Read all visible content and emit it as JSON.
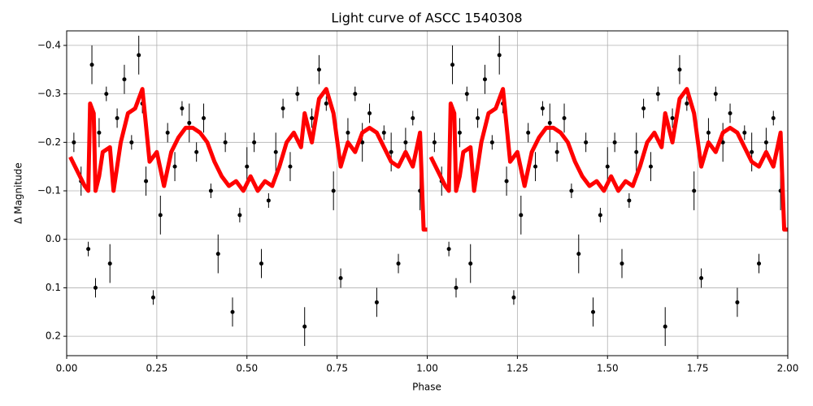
{
  "chart_data": {
    "type": "errorbar-line",
    "title": "Light curve of ASCC 1540308",
    "x_label": "Phase",
    "y_label": "Δ Magnitude",
    "xlim": [
      0,
      2
    ],
    "ylim": [
      0.24,
      -0.43
    ],
    "grid": true,
    "xticks": [
      {
        "value": 0,
        "label": "0.00"
      },
      {
        "value": 0.25,
        "label": "0.25"
      },
      {
        "value": 0.5,
        "label": "0.50"
      },
      {
        "value": 0.75,
        "label": "0.75"
      },
      {
        "value": 1,
        "label": "1.00"
      },
      {
        "value": 1.25,
        "label": "1.25"
      },
      {
        "value": 1.5,
        "label": "1.50"
      },
      {
        "value": 1.75,
        "label": "1.75"
      },
      {
        "value": 2,
        "label": "2.00"
      }
    ],
    "yticks": [
      {
        "value": -0.4,
        "label": "−0.4"
      },
      {
        "value": -0.3,
        "label": "−0.3"
      },
      {
        "value": -0.2,
        "label": "−0.2"
      },
      {
        "value": -0.1,
        "label": "−0.1"
      },
      {
        "value": 0,
        "label": "0.0"
      },
      0.1,
      0.2
    ],
    "points": {
      "color": "#000000",
      "x": [
        0.02,
        0.04,
        0.06,
        0.07,
        0.08,
        0.09,
        0.11,
        0.12,
        0.14,
        0.16,
        0.18,
        0.2,
        0.21,
        0.22,
        0.24,
        0.26,
        0.28,
        0.3,
        0.32,
        0.34,
        0.36,
        0.38,
        0.4,
        0.42,
        0.44,
        0.46,
        0.48,
        0.5,
        0.52,
        0.54,
        0.56,
        0.58,
        0.6,
        0.62,
        0.64,
        0.66,
        0.68,
        0.7,
        0.72,
        0.74,
        0.76,
        0.78,
        0.8,
        0.82,
        0.84,
        0.86,
        0.88,
        0.9,
        0.92,
        0.94,
        0.96,
        0.98,
        1.02,
        1.04,
        1.06,
        1.07,
        1.08,
        1.09,
        1.11,
        1.12,
        1.14,
        1.16,
        1.18,
        1.2,
        1.21,
        1.22,
        1.24,
        1.26,
        1.28,
        1.3,
        1.32,
        1.34,
        1.36,
        1.38,
        1.4,
        1.42,
        1.44,
        1.46,
        1.48,
        1.5,
        1.52,
        1.54,
        1.56,
        1.58,
        1.6,
        1.62,
        1.64,
        1.66,
        1.68,
        1.7,
        1.72,
        1.74,
        1.76,
        1.78,
        1.8,
        1.82,
        1.84,
        1.86,
        1.88,
        1.9,
        1.92,
        1.94,
        1.96,
        1.98
      ],
      "values": [
        -0.2,
        -0.12,
        0.02,
        -0.36,
        0.1,
        -0.22,
        -0.3,
        0.05,
        -0.25,
        -0.33,
        -0.2,
        -0.38,
        -0.28,
        -0.12,
        0.12,
        -0.05,
        -0.22,
        -0.15,
        -0.27,
        -0.24,
        -0.18,
        -0.25,
        -0.1,
        0.03,
        -0.2,
        0.15,
        -0.05,
        -0.15,
        -0.2,
        0.05,
        -0.08,
        -0.18,
        -0.27,
        -0.15,
        -0.3,
        0.18,
        -0.25,
        -0.35,
        -0.28,
        -0.1,
        0.08,
        -0.22,
        -0.3,
        -0.2,
        -0.26,
        0.13,
        -0.22,
        -0.18,
        0.05,
        -0.2,
        -0.25,
        -0.1,
        -0.2,
        -0.12,
        0.02,
        -0.36,
        0.1,
        -0.22,
        -0.3,
        0.05,
        -0.25,
        -0.33,
        -0.2,
        -0.38,
        -0.28,
        -0.12,
        0.12,
        -0.05,
        -0.22,
        -0.15,
        -0.27,
        -0.24,
        -0.18,
        -0.25,
        -0.1,
        0.03,
        -0.2,
        0.15,
        -0.05,
        -0.15,
        -0.2,
        0.05,
        -0.08,
        -0.18,
        -0.27,
        -0.15,
        -0.3,
        0.18,
        -0.25,
        -0.35,
        -0.28,
        -0.1,
        0.08,
        -0.22,
        -0.3,
        -0.2,
        -0.26,
        0.13,
        -0.22,
        -0.18,
        0.05,
        -0.2,
        -0.25,
        -0.1
      ],
      "errors": [
        0.02,
        0.03,
        0.015,
        0.04,
        0.02,
        0.03,
        0.015,
        0.04,
        0.02,
        0.03,
        0.015,
        0.04,
        0.02,
        0.03,
        0.015,
        0.04,
        0.02,
        0.03,
        0.015,
        0.04,
        0.02,
        0.03,
        0.015,
        0.04,
        0.02,
        0.03,
        0.015,
        0.04,
        0.02,
        0.03,
        0.015,
        0.04,
        0.02,
        0.03,
        0.015,
        0.04,
        0.02,
        0.03,
        0.015,
        0.04,
        0.02,
        0.03,
        0.015,
        0.04,
        0.02,
        0.03,
        0.015,
        0.04,
        0.02,
        0.03,
        0.015,
        0.04,
        0.02,
        0.03,
        0.015,
        0.04,
        0.02,
        0.03,
        0.015,
        0.04,
        0.02,
        0.03,
        0.015,
        0.04,
        0.02,
        0.03,
        0.015,
        0.04,
        0.02,
        0.03,
        0.015,
        0.04,
        0.02,
        0.03,
        0.015,
        0.04,
        0.02,
        0.03,
        0.015,
        0.04,
        0.02,
        0.03,
        0.015,
        0.04,
        0.02,
        0.03,
        0.015,
        0.04,
        0.02,
        0.03,
        0.015,
        0.04,
        0.02,
        0.03,
        0.015,
        0.04,
        0.02,
        0.03,
        0.015,
        0.04,
        0.02,
        0.03,
        0.015,
        0.04
      ]
    },
    "curve": {
      "color": "#ff0000",
      "x": [
        0.01,
        0.03,
        0.05,
        0.06,
        0.065,
        0.075,
        0.08,
        0.09,
        0.1,
        0.12,
        0.13,
        0.15,
        0.17,
        0.19,
        0.21,
        0.23,
        0.25,
        0.27,
        0.29,
        0.31,
        0.33,
        0.35,
        0.37,
        0.39,
        0.41,
        0.43,
        0.45,
        0.47,
        0.49,
        0.51,
        0.53,
        0.55,
        0.57,
        0.59,
        0.61,
        0.63,
        0.65,
        0.66,
        0.68,
        0.7,
        0.72,
        0.74,
        0.76,
        0.78,
        0.8,
        0.82,
        0.84,
        0.86,
        0.88,
        0.9,
        0.92,
        0.94,
        0.96,
        0.98,
        0.99,
        1.0,
        null,
        1.01,
        1.03,
        1.05,
        1.06,
        1.065,
        1.075,
        1.08,
        1.09,
        1.1,
        1.12,
        1.13,
        1.15,
        1.17,
        1.19,
        1.21,
        1.23,
        1.25,
        1.27,
        1.29,
        1.31,
        1.33,
        1.35,
        1.37,
        1.39,
        1.41,
        1.43,
        1.45,
        1.47,
        1.49,
        1.51,
        1.53,
        1.55,
        1.57,
        1.59,
        1.61,
        1.63,
        1.65,
        1.66,
        1.68,
        1.7,
        1.72,
        1.74,
        1.76,
        1.78,
        1.8,
        1.82,
        1.84,
        1.86,
        1.88,
        1.9,
        1.92,
        1.94,
        1.96,
        1.98,
        1.99,
        2.0
      ],
      "values": [
        -0.17,
        -0.14,
        -0.11,
        -0.1,
        -0.28,
        -0.26,
        -0.1,
        -0.13,
        -0.18,
        -0.19,
        -0.1,
        -0.2,
        -0.26,
        -0.27,
        -0.31,
        -0.16,
        -0.18,
        -0.11,
        -0.18,
        -0.21,
        -0.23,
        -0.23,
        -0.22,
        -0.2,
        -0.16,
        -0.13,
        -0.11,
        -0.12,
        -0.1,
        -0.13,
        -0.1,
        -0.12,
        -0.11,
        -0.15,
        -0.2,
        -0.22,
        -0.19,
        -0.26,
        -0.2,
        -0.29,
        -0.31,
        -0.26,
        -0.15,
        -0.2,
        -0.18,
        -0.22,
        -0.23,
        -0.22,
        -0.19,
        -0.16,
        -0.15,
        -0.18,
        -0.15,
        -0.22,
        -0.02,
        -0.02,
        null,
        -0.17,
        -0.14,
        -0.11,
        -0.1,
        -0.28,
        -0.26,
        -0.1,
        -0.13,
        -0.18,
        -0.19,
        -0.1,
        -0.2,
        -0.26,
        -0.27,
        -0.31,
        -0.16,
        -0.18,
        -0.11,
        -0.18,
        -0.21,
        -0.23,
        -0.23,
        -0.22,
        -0.2,
        -0.16,
        -0.13,
        -0.11,
        -0.12,
        -0.1,
        -0.13,
        -0.1,
        -0.12,
        -0.11,
        -0.15,
        -0.2,
        -0.22,
        -0.19,
        -0.26,
        -0.2,
        -0.29,
        -0.31,
        -0.26,
        -0.15,
        -0.2,
        -0.18,
        -0.22,
        -0.23,
        -0.22,
        -0.19,
        -0.16,
        -0.15,
        -0.18,
        -0.15,
        -0.22,
        -0.02,
        -0.02
      ]
    }
  }
}
